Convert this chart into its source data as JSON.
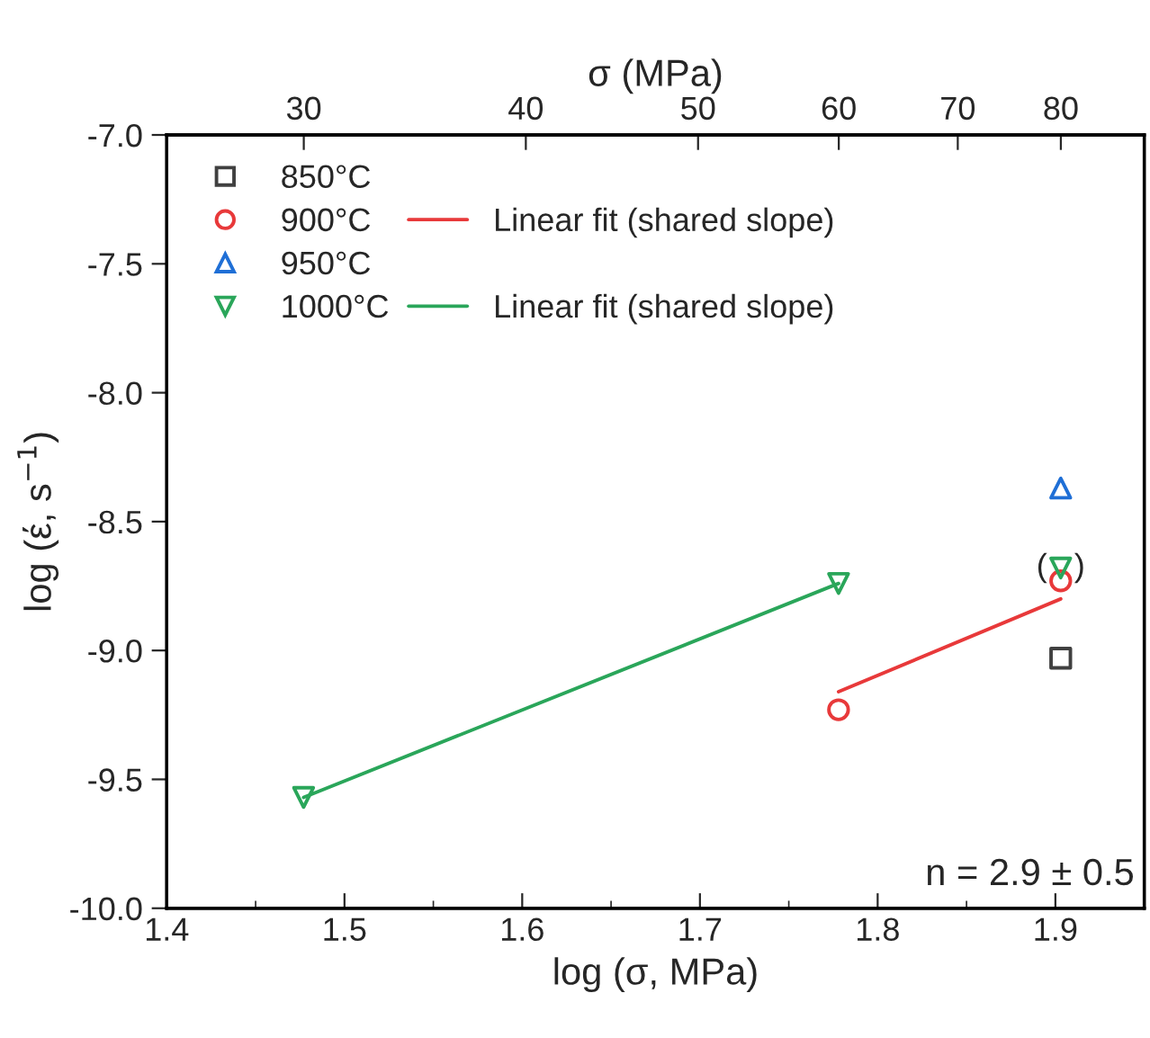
{
  "chart_data": {
    "type": "scatter",
    "xlabel": "log (σ, MPa)",
    "ylabel": "log (έ, s$^{−1}$)",
    "x2label": "σ (MPa)",
    "xlim": [
      1.4,
      1.95
    ],
    "xticks": [
      1.4,
      1.5,
      1.6,
      1.7,
      1.8,
      1.9
    ],
    "log": "x2",
    "x2lim": [
      25.12,
      89.13
    ],
    "x2ticks": [
      30,
      40,
      50,
      60,
      70,
      80
    ],
    "ylim": [
      -10,
      -7
    ],
    "yticks": [
      {
        "value": -10,
        "label": "-10.0"
      },
      {
        "value": -9.5,
        "label": "-9.5"
      },
      {
        "value": -9,
        "label": "-9.0"
      },
      {
        "value": -8.5,
        "label": "-8.5"
      },
      {
        "value": -8,
        "label": "-8.0"
      },
      {
        "value": -7.5,
        "label": "-7.5"
      },
      {
        "value": -7,
        "label": "-7.0"
      }
    ],
    "legend": "top left",
    "grid": false,
    "series": [
      {
        "name": "850°C",
        "marker": "square",
        "color": "#404040",
        "x": [
          1.903
        ],
        "values": [
          -9.03
        ]
      },
      {
        "name": "900°C",
        "marker": "circle",
        "color": "#e8393a",
        "x": [
          1.778,
          1.903
        ],
        "values": [
          -9.23,
          -8.73
        ]
      },
      {
        "name": "950°C",
        "marker": "triangle",
        "color": "#1f6fd6",
        "x": [
          1.903
        ],
        "values": [
          -8.37
        ]
      },
      {
        "name": "1000°C",
        "marker": "triangle_down",
        "color": "#2aa65a",
        "x": [
          1.477,
          1.778,
          1.903
        ],
        "values": [
          -9.57,
          -8.74,
          -8.68
        ]
      },
      {
        "name": "Linear fit (shared slope)",
        "type": "line",
        "color": "#e8393a",
        "x": [
          1.778,
          1.903
        ],
        "values": [
          -9.16,
          -8.8
        ]
      },
      {
        "name": "Linear fit (shared slope)",
        "type": "line",
        "color": "#2aa65a",
        "x": [
          1.477,
          1.778
        ],
        "values": [
          -9.57,
          -8.74
        ]
      }
    ],
    "annotations": [
      {
        "text": "(   )",
        "x": 1.903,
        "y": -8.68
      },
      "n = 2.9 ± 0.5"
    ]
  }
}
